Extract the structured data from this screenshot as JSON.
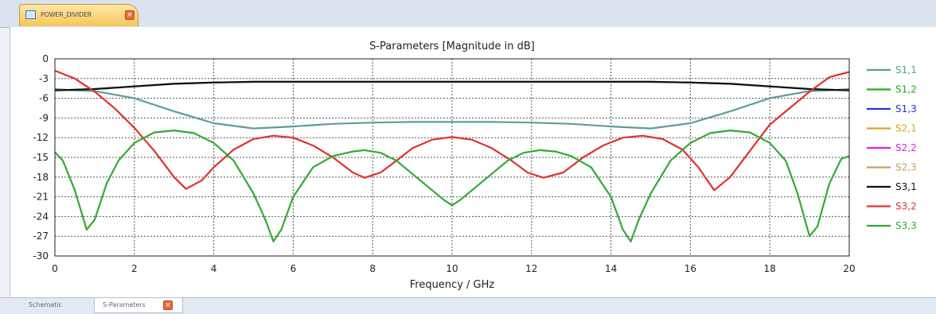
{
  "document_tab": {
    "label": "POWER_DIVIDER",
    "close_glyph": "×",
    "icon": "schematic-icon"
  },
  "bottom_tabs": [
    {
      "label": "Schematic"
    },
    {
      "label": "S-Parameters",
      "close_glyph": "×"
    }
  ],
  "chart_data": {
    "type": "line",
    "title": "S-Parameters [Magnitude in dB]",
    "xlabel": "Frequency / GHz",
    "ylabel": "",
    "xlim": [
      0,
      20
    ],
    "ylim": [
      -30,
      0
    ],
    "xticks": [
      0,
      2,
      4,
      6,
      8,
      10,
      12,
      14,
      16,
      18,
      20
    ],
    "yticks": [
      0,
      -3,
      -6,
      -9,
      -12,
      -15,
      -18,
      -21,
      -24,
      -27,
      -30
    ],
    "grid": true,
    "legend_position": "right",
    "series": [
      {
        "name": "S1,1",
        "color": "#5f9b9b",
        "x": [
          0,
          0.5,
          1,
          2,
          3,
          4,
          5,
          6,
          7,
          8,
          9,
          10,
          11,
          12,
          13,
          14,
          15,
          16,
          17,
          18,
          19,
          19.5,
          20
        ],
        "y": [
          -4.6,
          -4.8,
          -4.9,
          -6.0,
          -8.0,
          -9.8,
          -10.6,
          -10.3,
          -9.9,
          -9.7,
          -9.6,
          -9.6,
          -9.6,
          -9.7,
          -9.9,
          -10.3,
          -10.6,
          -9.8,
          -8.0,
          -6.0,
          -4.9,
          -4.8,
          -4.6
        ]
      },
      {
        "name": "S1,2",
        "color": "#22aa22",
        "x": [
          0,
          0.5,
          1,
          2,
          3,
          4,
          5,
          6,
          7,
          8,
          9,
          10,
          11,
          12,
          13,
          14,
          15,
          16,
          17,
          18,
          19,
          19.5,
          20
        ],
        "y": [
          -4.8,
          -4.7,
          -4.6,
          -4.2,
          -3.8,
          -3.6,
          -3.5,
          -3.5,
          -3.5,
          -3.5,
          -3.5,
          -3.5,
          -3.5,
          -3.5,
          -3.5,
          -3.5,
          -3.5,
          -3.6,
          -3.8,
          -4.2,
          -4.6,
          -4.7,
          -4.8
        ]
      },
      {
        "name": "S1,3",
        "color": "#2233dd",
        "x": [],
        "y": []
      },
      {
        "name": "S2,1",
        "color": "#e0a020",
        "x": [],
        "y": []
      },
      {
        "name": "S2,2",
        "color": "#dd22dd",
        "x": [],
        "y": []
      },
      {
        "name": "S2,3",
        "color": "#c8a060",
        "x": [],
        "y": []
      },
      {
        "name": "S3,1",
        "color": "#111111",
        "x": [
          0,
          0.5,
          1,
          2,
          3,
          4,
          5,
          6,
          7,
          8,
          9,
          10,
          11,
          12,
          13,
          14,
          15,
          16,
          17,
          18,
          19,
          19.5,
          20
        ],
        "y": [
          -4.8,
          -4.7,
          -4.6,
          -4.2,
          -3.8,
          -3.6,
          -3.5,
          -3.5,
          -3.5,
          -3.5,
          -3.5,
          -3.5,
          -3.5,
          -3.5,
          -3.5,
          -3.5,
          -3.5,
          -3.6,
          -3.8,
          -4.2,
          -4.6,
          -4.7,
          -4.8
        ]
      },
      {
        "name": "S3,2",
        "color": "#e33030",
        "x": [
          0,
          0.5,
          1,
          1.5,
          2,
          2.5,
          3,
          3.3,
          3.7,
          4,
          4.5,
          5,
          5.5,
          6,
          6.5,
          7,
          7.5,
          7.8,
          8.2,
          8.6,
          9,
          9.5,
          10,
          10.5,
          11,
          11.5,
          11.9,
          12.3,
          12.8,
          13.3,
          13.8,
          14.3,
          14.8,
          15.3,
          15.8,
          16.2,
          16.6,
          17,
          17.5,
          18,
          18.5,
          19,
          19.5,
          20
        ],
        "y": [
          -1.8,
          -3.0,
          -5.0,
          -7.5,
          -10.5,
          -14.0,
          -18.0,
          -19.8,
          -18.5,
          -16.5,
          -13.8,
          -12.2,
          -11.7,
          -12.0,
          -13.2,
          -15.0,
          -17.3,
          -18.1,
          -17.3,
          -15.5,
          -13.6,
          -12.3,
          -11.9,
          -12.3,
          -13.6,
          -15.5,
          -17.3,
          -18.1,
          -17.3,
          -15.0,
          -13.2,
          -12.0,
          -11.7,
          -12.2,
          -13.8,
          -16.5,
          -20.0,
          -18.0,
          -14.0,
          -10.0,
          -7.5,
          -5.0,
          -2.8,
          -2.0
        ]
      },
      {
        "name": "S3,3",
        "color": "#33aa33",
        "x": [
          0,
          0.2,
          0.5,
          0.8,
          1,
          1.3,
          1.6,
          2,
          2.5,
          3,
          3.5,
          4,
          4.5,
          5,
          5.3,
          5.5,
          5.7,
          6,
          6.5,
          7,
          7.5,
          7.8,
          8.2,
          8.6,
          9,
          9.5,
          9.8,
          10,
          10.2,
          10.5,
          11,
          11.4,
          11.8,
          12.2,
          12.6,
          13,
          13.5,
          14,
          14.3,
          14.5,
          14.7,
          15,
          15.5,
          16,
          16.5,
          17,
          17.5,
          18,
          18.4,
          18.7,
          19,
          19.2,
          19.5,
          19.8,
          20
        ],
        "y": [
          -14.2,
          -15.5,
          -20.0,
          -26.0,
          -24.5,
          -19.0,
          -15.5,
          -12.8,
          -11.2,
          -10.9,
          -11.3,
          -12.8,
          -15.5,
          -20.5,
          -24.5,
          -27.8,
          -26.0,
          -21.0,
          -16.5,
          -14.8,
          -14.1,
          -13.9,
          -14.3,
          -15.5,
          -17.5,
          -20.0,
          -21.5,
          -22.3,
          -21.5,
          -20.0,
          -17.5,
          -15.5,
          -14.3,
          -13.9,
          -14.1,
          -14.8,
          -16.5,
          -21.0,
          -26.0,
          -27.8,
          -24.5,
          -20.5,
          -15.5,
          -12.8,
          -11.3,
          -10.9,
          -11.2,
          -12.8,
          -15.5,
          -20.5,
          -27.0,
          -25.5,
          -19.0,
          -15.2,
          -14.8
        ]
      }
    ]
  }
}
